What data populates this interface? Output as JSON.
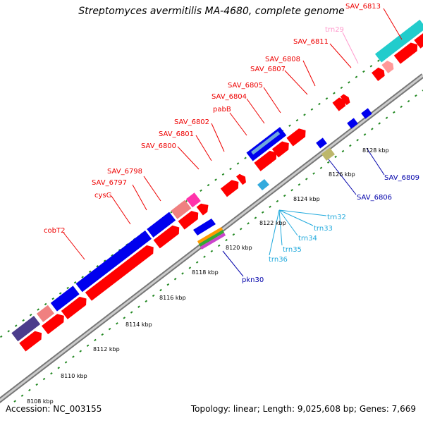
{
  "title": "Streptomyces avermitilis MA-4680, complete genome",
  "footer": {
    "accession": "Accession: NC_003155",
    "summary": "Topology: linear; Length: 9,025,608 bp; Genes: 7,669"
  },
  "colors": {
    "gene_red": "#ff0000",
    "gene_blue": "#0000ee",
    "gene_pink": "#f08080",
    "gene_magenta": "#ff33aa",
    "gene_cyan": "#22cccc",
    "gene_olive": "#bdb76b",
    "gene_navy": "#4b3c8c",
    "label_red": "#ee0000",
    "label_blue": "#0000aa",
    "label_cyan": "#22aadd",
    "label_pink": "#ff99cc",
    "axis": "#999999",
    "tick_green": "#228822"
  },
  "ticks": [
    "8108 kbp",
    "8110 kbp",
    "8112 kbp",
    "8114 kbp",
    "8116 kbp",
    "8118 kbp",
    "8120 kbp",
    "8122 kbp",
    "8124 kbp",
    "8126 kbp",
    "8128 kbp"
  ],
  "labels_top": [
    "cobT2",
    "cysG",
    "SAV_6797",
    "SAV_6798",
    "SAV_6800",
    "SAV_6801",
    "SAV_6802",
    "pabB",
    "SAV_6804",
    "SAV_6805",
    "SAV_6807",
    "SAV_6808",
    "SAV_6811",
    "trn29",
    "SAV_6813"
  ],
  "labels_bottom": [
    "pkn30",
    "trn36",
    "trn35",
    "trn34",
    "trn33",
    "trn32",
    "SAV_6806",
    "SAV_6809"
  ]
}
